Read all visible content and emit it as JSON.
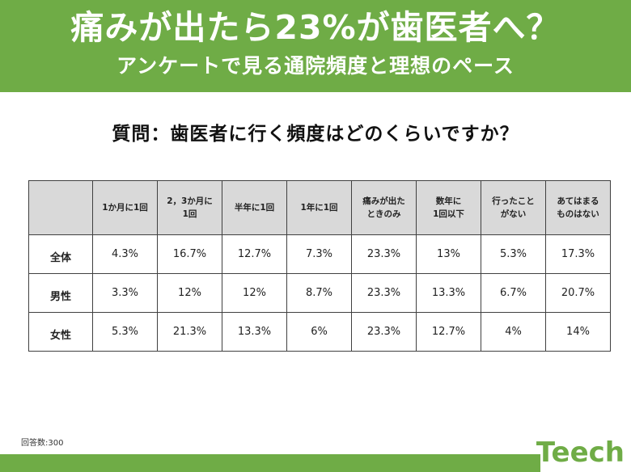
{
  "header": {
    "title": "痛みが出たら23%が歯医者へ？",
    "subtitle": "アンケートで見る通院頻度と理想のペース"
  },
  "question": "質問：歯医者に行く頻度はどのくらいですか？",
  "chart_data": {
    "type": "table",
    "title": "痛みが出たら23%が歯医者へ？",
    "columns": [
      [
        "1か月に1回"
      ],
      [
        "2，3か月に",
        "1回"
      ],
      [
        "半年に1回"
      ],
      [
        "1年に1回"
      ],
      [
        "痛みが出た",
        "ときのみ"
      ],
      [
        "数年に",
        "1回以下"
      ],
      [
        "行ったこと",
        "がない"
      ],
      [
        "あてはまる",
        "ものはない"
      ]
    ],
    "rows": [
      {
        "label": "全体",
        "values": [
          "4.3%",
          "16.7%",
          "12.7%",
          "7.3%",
          "23.3%",
          "13%",
          "5.3%",
          "17.3%"
        ]
      },
      {
        "label": "男性",
        "values": [
          "3.3%",
          "12%",
          "12%",
          "8.7%",
          "23.3%",
          "13.3%",
          "6.7%",
          "20.7%"
        ]
      },
      {
        "label": "女性",
        "values": [
          "5.3%",
          "21.3%",
          "13.3%",
          "6%",
          "23.3%",
          "12.7%",
          "4%",
          "14%"
        ]
      }
    ]
  },
  "footnote": "回答数:300",
  "logo": "Teech",
  "colors": {
    "accent": "#6fac46",
    "header_cell": "#d9d9d9"
  }
}
